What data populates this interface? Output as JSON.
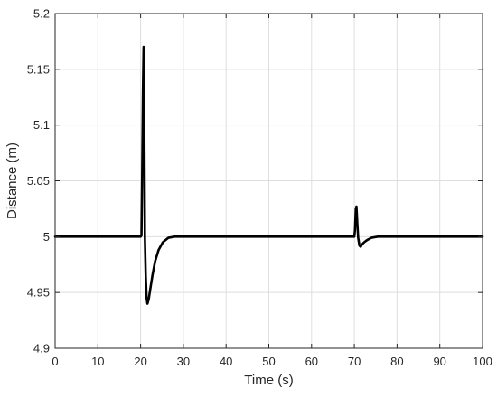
{
  "chart_data": {
    "type": "line",
    "title": "",
    "xlabel": "Time (s)",
    "ylabel": "Distance (m)",
    "xlim": [
      0,
      100
    ],
    "ylim": [
      4.9,
      5.2
    ],
    "xticks": [
      0,
      10,
      20,
      30,
      40,
      50,
      60,
      70,
      80,
      90,
      100
    ],
    "yticks": [
      4.9,
      4.95,
      5,
      5.05,
      5.1,
      5.15,
      5.2
    ],
    "xtick_labels": [
      "0",
      "10",
      "20",
      "30",
      "40",
      "50",
      "60",
      "70",
      "80",
      "90",
      "100"
    ],
    "ytick_labels": [
      "4.9",
      "4.95",
      "5",
      "5.05",
      "5.1",
      "5.15",
      "5.2"
    ],
    "grid": true,
    "series": [
      {
        "color": "#000000",
        "x": [
          0,
          10,
          20,
          20.2,
          20.35,
          20.55,
          20.7,
          20.85,
          21.0,
          21.2,
          21.4,
          21.6,
          21.9,
          22.3,
          22.8,
          23.4,
          24.2,
          25.2,
          26.5,
          28,
          30,
          40,
          50,
          60,
          70,
          70.15,
          70.35,
          70.5,
          70.7,
          70.9,
          71.2,
          71.5,
          71.8,
          72.3,
          73,
          74,
          75.5,
          77.5,
          80,
          90,
          100
        ],
        "y": [
          5.0,
          5.0,
          5.0,
          5.001,
          5.05,
          5.13,
          5.17,
          5.1,
          5.0,
          4.965,
          4.945,
          4.94,
          4.944,
          4.954,
          4.966,
          4.978,
          4.988,
          4.995,
          4.999,
          5.0,
          5.0,
          5.0,
          5.0,
          5.0,
          5.0,
          5.006,
          5.025,
          5.027,
          5.012,
          4.999,
          4.992,
          4.991,
          4.993,
          4.995,
          4.997,
          4.999,
          5.0,
          5.0,
          5.0,
          5.0,
          5.0
        ]
      }
    ]
  }
}
